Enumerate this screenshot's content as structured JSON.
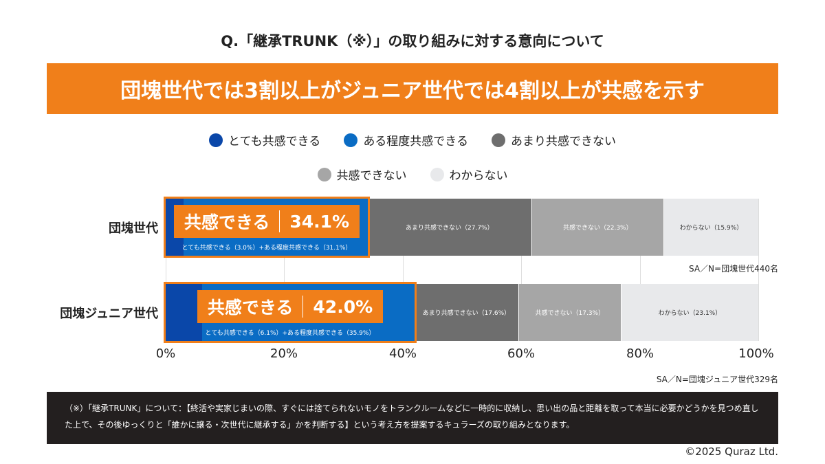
{
  "question": "Q.「継承TRUNK（※）」の取り組みに対する意向について",
  "headline": "団塊世代では3割以上がジュニア世代では4割以上が共感を示す",
  "chart_data": {
    "type": "bar",
    "stacked": true,
    "orientation": "horizontal",
    "legend": [
      {
        "name": "とても共感できる",
        "color": "#0a47a9"
      },
      {
        "name": "ある程度共感できる",
        "color": "#0a6cc4"
      },
      {
        "name": "あまり共感できない",
        "color": "#6e6e6e"
      },
      {
        "name": "共感できない",
        "color": "#a6a6a6"
      },
      {
        "name": "わからない",
        "color": "#e8e9eb"
      }
    ],
    "legend_placement": "top",
    "categories": [
      "団塊世代",
      "団塊ジュニア世代"
    ],
    "series": [
      {
        "name": "とても共感できる",
        "values": [
          3.0,
          6.1
        ]
      },
      {
        "name": "ある程度共感できる",
        "values": [
          31.1,
          35.9
        ]
      },
      {
        "name": "あまり共感できない",
        "values": [
          27.7,
          17.6
        ]
      },
      {
        "name": "共感できない",
        "values": [
          22.3,
          17.3
        ]
      },
      {
        "name": "わからない",
        "values": [
          15.9,
          23.1
        ]
      }
    ],
    "segment_labels": [
      [
        null,
        null,
        "あまり共感できない（27.7%）",
        "共感できない（22.3%）",
        "わからない（15.9%）"
      ],
      [
        null,
        null,
        "あまり共感できない（17.6%）",
        "共感できない（17.3%）",
        "わからない（23.1%）"
      ]
    ],
    "highlights": [
      {
        "label": "共感できる",
        "value": "34.1%",
        "sub": "とても共感できる（3.0%）+ある程度共感できる（31.1%）"
      },
      {
        "label": "共感できる",
        "value": "42.0%",
        "sub": "とても共感できる（6.1%）+ある程度共感できる（35.9%）"
      }
    ],
    "sample_notes": [
      "SA／N=団塊世代440名",
      "SA／N=団塊ジュニア世代329名"
    ],
    "xlim": [
      0,
      100
    ],
    "xticks": [
      "0%",
      "20%",
      "40%",
      "60%",
      "80%",
      "100%"
    ],
    "grid": true,
    "highlight_color": "#f07f1a"
  },
  "footnote": "（※）「継承TRUNK」について：【終活や実家じまいの際、すぐには捨てられないモノをトランクルームなどに一時的に収納し、思い出の品と距離を取って本当に必要かどうかを見つめ直した上で、その後ゆっくりと「誰かに譲る・次世代に継承する」かを判断する】という考え方を提案するキュラーズの取り組みとなります。",
  "copyright": "©2025 Quraz Ltd."
}
